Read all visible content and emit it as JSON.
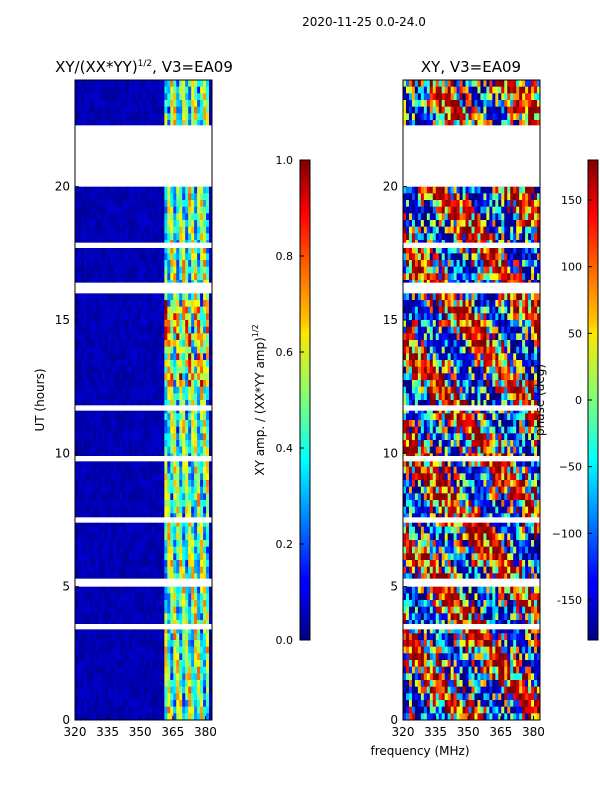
{
  "suptitle": "2020-11-25 0.0-24.0",
  "colors": {
    "background": "#ffffff",
    "axis": "#000000",
    "low": "#00007f",
    "high": "#7f0000"
  },
  "chart_data": [
    {
      "type": "heatmap",
      "title_text": "XY/(XX*YY)",
      "title_superscript": "1/2",
      "title_suffix": ", V3=EA09",
      "xlabel": "",
      "ylabel": "UT (hours)",
      "xlim": [
        320,
        383
      ],
      "ylim": [
        0,
        24
      ],
      "xticks": [
        "320",
        "335",
        "350",
        "365",
        "380"
      ],
      "yticks": [
        "0",
        "5",
        "10",
        "15",
        "20"
      ],
      "colorbar": {
        "label_text": "XY amp. / (XX*YY amp)",
        "label_superscript": "1/2",
        "range": [
          0.0,
          1.0
        ],
        "ticks": [
          "0.0",
          "0.2",
          "0.4",
          "0.6",
          "0.8",
          "1.0"
        ]
      },
      "value_description": "normalized cross-correlation amplitude",
      "gaps_hours": [
        [
          22.3,
          20.0
        ],
        [
          16.4,
          16.0
        ],
        [
          7.6,
          7.4
        ],
        [
          5.3,
          5.0
        ],
        [
          3.6,
          3.4
        ],
        [
          9.9,
          9.7
        ],
        [
          11.8,
          11.6
        ],
        [
          17.9,
          17.7
        ]
      ],
      "active_band_mhz": [
        360.5,
        382.0
      ]
    },
    {
      "type": "heatmap",
      "title_text": "XY, V3=EA09",
      "xlabel": "frequency (MHz)",
      "ylabel": "",
      "xlim": [
        320,
        383
      ],
      "ylim": [
        0,
        24
      ],
      "xticks": [
        "320",
        "335",
        "350",
        "365",
        "380"
      ],
      "yticks": [
        "0",
        "5",
        "10",
        "15",
        "20"
      ],
      "colorbar": {
        "label_text": "phase (deg)",
        "range": [
          -180,
          180
        ],
        "ticks": [
          "-150",
          "−100",
          "−50",
          "0",
          "50",
          "100",
          "150"
        ],
        "tick_values": [
          -150,
          -100,
          -50,
          0,
          50,
          100,
          150
        ]
      },
      "value_description": "cross-correlation phase",
      "gaps_hours": [
        [
          22.3,
          20.0
        ],
        [
          16.4,
          16.0
        ],
        [
          7.6,
          7.4
        ],
        [
          5.3,
          5.0
        ],
        [
          3.6,
          3.4
        ],
        [
          9.9,
          9.7
        ],
        [
          11.8,
          11.6
        ],
        [
          17.9,
          17.7
        ]
      ]
    }
  ]
}
